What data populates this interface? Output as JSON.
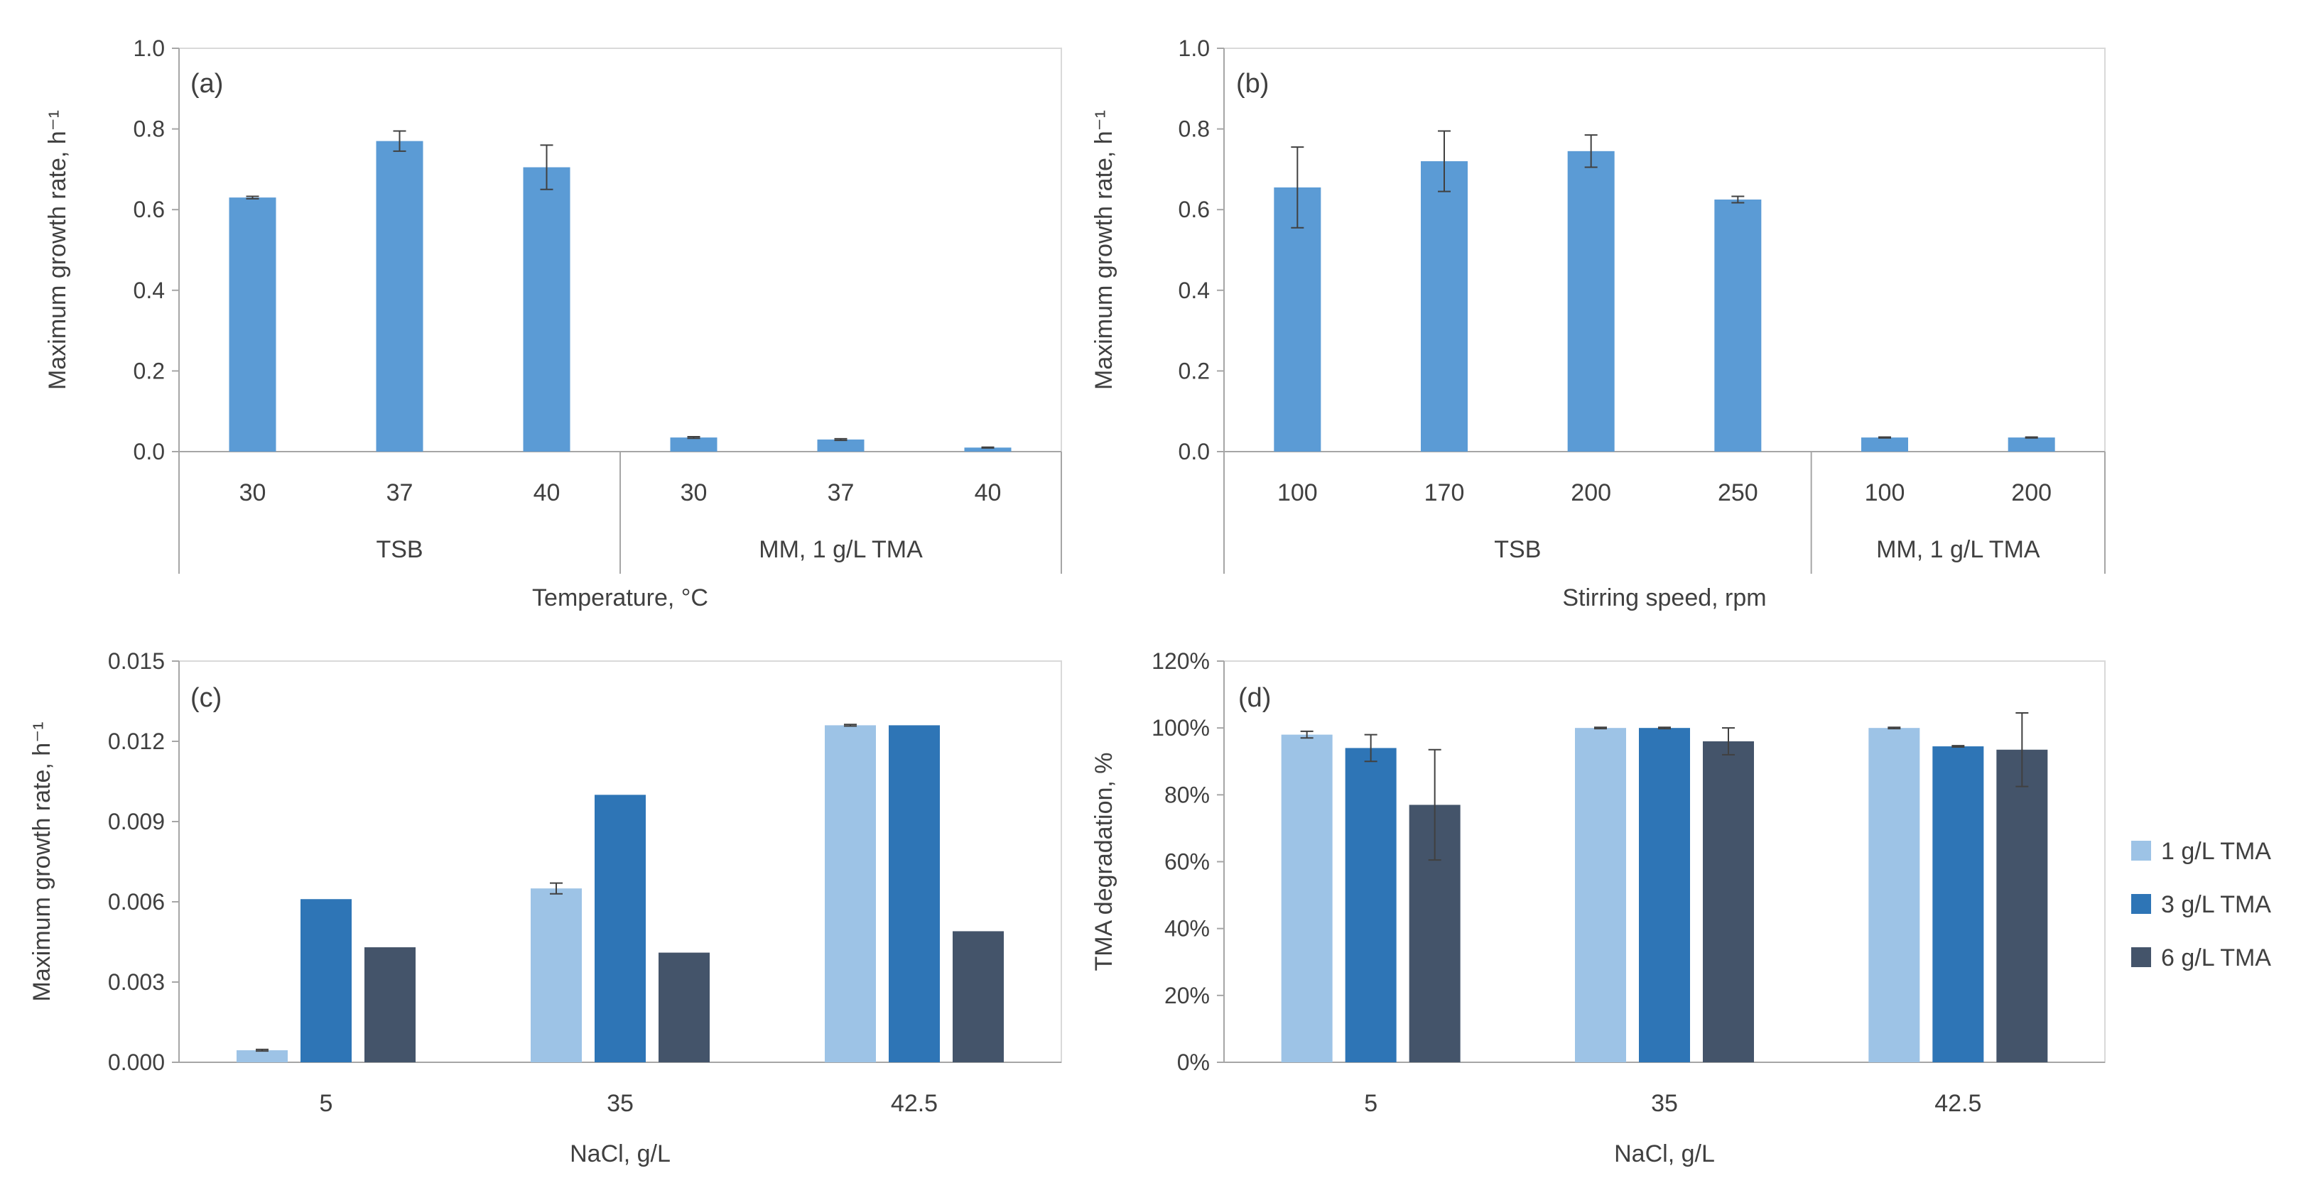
{
  "colors": {
    "bar_single": "#5B9BD5",
    "bar_1g": "#9DC3E6",
    "bar_3g": "#2E75B6",
    "bar_6g": "#44546A",
    "axis": "#A6A6A6",
    "text": "#404040",
    "error": "#404040"
  },
  "legend": {
    "items": [
      {
        "label": "1 g/L TMA",
        "color_key": "bar_1g"
      },
      {
        "label": "3 g/L TMA",
        "color_key": "bar_3g"
      },
      {
        "label": "6 g/L TMA",
        "color_key": "bar_6g"
      }
    ]
  },
  "chart_data": [
    {
      "id": "a",
      "type": "bar",
      "panel_label": "(a)",
      "ylabel": "Maximum growth rate, h⁻¹",
      "xlabel": "Temperature, °C",
      "ylim": [
        0,
        1.0
      ],
      "yticks": [
        0.0,
        0.2,
        0.4,
        0.6,
        0.8,
        1.0
      ],
      "ytick_labels": [
        "0.0",
        "0.2",
        "0.4",
        "0.6",
        "0.8",
        "1.0"
      ],
      "categories": [
        "30",
        "37",
        "40",
        "30",
        "37",
        "40"
      ],
      "groups": [
        {
          "label": "TSB",
          "start": 0,
          "count": 3
        },
        {
          "label": "MM, 1 g/L TMA",
          "start": 3,
          "count": 3
        }
      ],
      "series": [
        {
          "name": "growth rate",
          "color_key": "bar_single",
          "values": [
            0.63,
            0.77,
            0.705,
            0.035,
            0.03,
            0.01
          ],
          "errors": [
            0.003,
            0.025,
            0.055,
            0.002,
            0.002,
            0.001
          ]
        }
      ]
    },
    {
      "id": "b",
      "type": "bar",
      "panel_label": "(b)",
      "ylabel": "Maximum growth rate, h⁻¹",
      "xlabel": "Stirring speed, rpm",
      "ylim": [
        0,
        1.0
      ],
      "yticks": [
        0.0,
        0.2,
        0.4,
        0.6,
        0.8,
        1.0
      ],
      "ytick_labels": [
        "0.0",
        "0.2",
        "0.4",
        "0.6",
        "0.8",
        "1.0"
      ],
      "categories": [
        "100",
        "170",
        "200",
        "250",
        "100",
        "200"
      ],
      "groups": [
        {
          "label": "TSB",
          "start": 0,
          "count": 4
        },
        {
          "label": "MM, 1 g/L TMA",
          "start": 4,
          "count": 2
        }
      ],
      "series": [
        {
          "name": "growth rate",
          "color_key": "bar_single",
          "values": [
            0.655,
            0.72,
            0.745,
            0.625,
            0.035,
            0.035
          ],
          "errors": [
            0.1,
            0.075,
            0.04,
            0.008,
            0.001,
            0.001
          ]
        }
      ]
    },
    {
      "id": "c",
      "type": "bar",
      "panel_label": "(c)",
      "ylabel": "Maximum growth rate, h⁻¹",
      "xlabel": "NaCl, g/L",
      "ylim": [
        0,
        0.015
      ],
      "yticks": [
        0,
        0.003,
        0.006,
        0.009,
        0.012,
        0.015
      ],
      "ytick_labels": [
        "0.000",
        "0.003",
        "0.006",
        "0.009",
        "0.012",
        "0.015"
      ],
      "categories": [
        "5",
        "35",
        "42.5"
      ],
      "series": [
        {
          "name": "1 g/L TMA",
          "color_key": "bar_1g",
          "values": [
            0.00045,
            0.0065,
            0.0126
          ],
          "errors": [
            3e-05,
            0.0002,
            3e-05
          ]
        },
        {
          "name": "3 g/L TMA",
          "color_key": "bar_3g",
          "values": [
            0.0061,
            0.01,
            0.0126
          ],
          "errors": [
            0,
            0,
            0
          ]
        },
        {
          "name": "6 g/L TMA",
          "color_key": "bar_6g",
          "values": [
            0.0043,
            0.0041,
            0.0049
          ],
          "errors": [
            0,
            0,
            0
          ]
        }
      ]
    },
    {
      "id": "d",
      "type": "bar",
      "panel_label": "(d)",
      "ylabel": "TMA degradation, %",
      "xlabel": "NaCl, g/L",
      "ylim": [
        0,
        1.2
      ],
      "yticks": [
        0,
        0.2,
        0.4,
        0.6,
        0.8,
        1.0,
        1.2
      ],
      "ytick_labels": [
        "0%",
        "20%",
        "40%",
        "60%",
        "80%",
        "100%",
        "120%"
      ],
      "categories": [
        "5",
        "35",
        "42.5"
      ],
      "series": [
        {
          "name": "1 g/L TMA",
          "color_key": "bar_1g",
          "values": [
            0.98,
            1.0,
            1.0
          ],
          "errors": [
            0.01,
            0.002,
            0.002
          ]
        },
        {
          "name": "3 g/L TMA",
          "color_key": "bar_3g",
          "values": [
            0.94,
            1.0,
            0.945
          ],
          "errors": [
            0.04,
            0.002,
            0.002
          ]
        },
        {
          "name": "6 g/L TMA",
          "color_key": "bar_6g",
          "values": [
            0.77,
            0.96,
            0.935
          ],
          "errors": [
            0.165,
            0.04,
            0.11
          ]
        }
      ]
    }
  ]
}
